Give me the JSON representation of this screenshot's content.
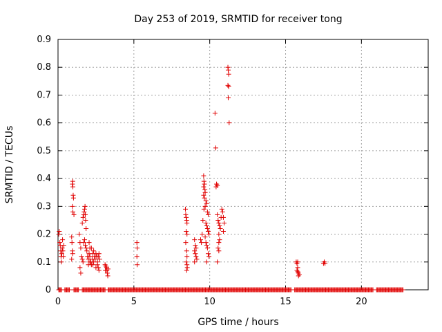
{
  "chart_data": {
    "type": "scatter",
    "title": "Day 253 of 2019, SRMTID for receiver tong",
    "xlabel": "GPS time / hours",
    "ylabel": "SRMTID / TECUs",
    "xlim": [
      0,
      24.4
    ],
    "ylim": [
      0,
      0.9
    ],
    "xticks": [
      0,
      5,
      10,
      15,
      20
    ],
    "xtick_labels": [
      "0",
      "5",
      "10",
      "15",
      "20"
    ],
    "yticks": [
      0,
      0.1,
      0.2,
      0.3,
      0.4,
      0.5,
      0.6,
      0.7,
      0.8,
      0.9
    ],
    "ytick_labels": [
      "0",
      "0.1",
      "0.2",
      "0.3",
      "0.4",
      "0.5",
      "0.6",
      "0.7",
      "0.8",
      "0.9"
    ],
    "grid": true,
    "marker": "plus",
    "color": "#e00000",
    "zero_line_ranges": [
      [
        0.05,
        0.25
      ],
      [
        0.45,
        0.8
      ],
      [
        1.05,
        1.35
      ],
      [
        1.6,
        3.1
      ],
      [
        3.3,
        15.4
      ],
      [
        15.6,
        20.8
      ],
      [
        21.0,
        22.75
      ]
    ],
    "series": [
      {
        "name": "SRMTID",
        "points": [
          [
            0.05,
            0.2
          ],
          [
            0.08,
            0.21
          ],
          [
            0.12,
            0.17
          ],
          [
            0.15,
            0.16
          ],
          [
            0.18,
            0.14
          ],
          [
            0.2,
            0.12
          ],
          [
            0.22,
            0.1
          ],
          [
            0.25,
            0.13
          ],
          [
            0.28,
            0.15
          ],
          [
            0.3,
            0.18
          ],
          [
            0.32,
            0.14
          ],
          [
            0.35,
            0.12
          ],
          [
            0.38,
            0.16
          ],
          [
            0.95,
            0.38
          ],
          [
            0.97,
            0.39
          ],
          [
            0.98,
            0.37
          ],
          [
            1.0,
            0.34
          ],
          [
            1.02,
            0.33
          ],
          [
            0.95,
            0.3
          ],
          [
            0.98,
            0.28
          ],
          [
            1.05,
            0.27
          ],
          [
            0.9,
            0.19
          ],
          [
            0.92,
            0.17
          ],
          [
            0.95,
            0.14
          ],
          [
            0.97,
            0.13
          ],
          [
            0.9,
            0.11
          ],
          [
            1.4,
            0.2
          ],
          [
            1.45,
            0.17
          ],
          [
            1.5,
            0.15
          ],
          [
            1.55,
            0.12
          ],
          [
            1.6,
            0.11
          ],
          [
            1.65,
            0.1
          ],
          [
            1.45,
            0.08
          ],
          [
            1.5,
            0.06
          ],
          [
            1.6,
            0.24
          ],
          [
            1.65,
            0.26
          ],
          [
            1.7,
            0.27
          ],
          [
            1.72,
            0.28
          ],
          [
            1.75,
            0.29
          ],
          [
            1.78,
            0.3
          ],
          [
            1.8,
            0.27
          ],
          [
            1.82,
            0.25
          ],
          [
            1.85,
            0.22
          ],
          [
            1.7,
            0.17
          ],
          [
            1.75,
            0.18
          ],
          [
            1.8,
            0.16
          ],
          [
            1.85,
            0.15
          ],
          [
            1.9,
            0.14
          ],
          [
            1.95,
            0.12
          ],
          [
            2.0,
            0.11
          ],
          [
            2.05,
            0.13
          ],
          [
            2.1,
            0.12
          ],
          [
            2.15,
            0.1
          ],
          [
            2.2,
            0.09
          ],
          [
            2.25,
            0.11
          ],
          [
            2.3,
            0.13
          ],
          [
            2.35,
            0.14
          ],
          [
            2.4,
            0.12
          ],
          [
            2.45,
            0.11
          ],
          [
            2.5,
            0.13
          ],
          [
            2.55,
            0.12
          ],
          [
            2.6,
            0.1
          ],
          [
            2.65,
            0.12
          ],
          [
            2.7,
            0.13
          ],
          [
            2.75,
            0.11
          ],
          [
            2.05,
            0.17
          ],
          [
            2.1,
            0.15
          ],
          [
            2.2,
            0.15
          ],
          [
            2.3,
            0.09
          ],
          [
            2.35,
            0.1
          ],
          [
            2.5,
            0.08
          ],
          [
            2.6,
            0.09
          ],
          [
            2.65,
            0.08
          ],
          [
            2.7,
            0.07
          ],
          [
            2.0,
            0.09
          ],
          [
            2.1,
            0.1
          ],
          [
            3.1,
            0.09
          ],
          [
            3.15,
            0.085
          ],
          [
            3.2,
            0.08
          ],
          [
            3.22,
            0.07
          ],
          [
            3.25,
            0.06
          ],
          [
            3.28,
            0.05
          ],
          [
            3.3,
            0.075
          ],
          [
            3.12,
            0.07
          ],
          [
            5.2,
            0.17
          ],
          [
            5.22,
            0.15
          ],
          [
            5.2,
            0.12
          ],
          [
            5.22,
            0.09
          ],
          [
            8.4,
            0.29
          ],
          [
            8.42,
            0.27
          ],
          [
            8.45,
            0.26
          ],
          [
            8.48,
            0.25
          ],
          [
            8.5,
            0.24
          ],
          [
            8.45,
            0.21
          ],
          [
            8.5,
            0.2
          ],
          [
            8.42,
            0.17
          ],
          [
            8.48,
            0.14
          ],
          [
            8.5,
            0.12
          ],
          [
            8.45,
            0.1
          ],
          [
            8.5,
            0.09
          ],
          [
            8.48,
            0.07
          ],
          [
            8.52,
            0.08
          ],
          [
            9.0,
            0.18
          ],
          [
            9.05,
            0.16
          ],
          [
            9.1,
            0.15
          ],
          [
            9.0,
            0.14
          ],
          [
            9.05,
            0.13
          ],
          [
            9.1,
            0.12
          ],
          [
            9.15,
            0.11
          ],
          [
            9.0,
            0.1
          ],
          [
            9.4,
            0.18
          ],
          [
            9.45,
            0.17
          ],
          [
            9.5,
            0.2
          ],
          [
            9.55,
            0.25
          ],
          [
            9.6,
            0.41
          ],
          [
            9.62,
            0.39
          ],
          [
            9.65,
            0.38
          ],
          [
            9.6,
            0.37
          ],
          [
            9.68,
            0.36
          ],
          [
            9.7,
            0.35
          ],
          [
            9.6,
            0.34
          ],
          [
            9.65,
            0.33
          ],
          [
            9.75,
            0.32
          ],
          [
            9.8,
            0.31
          ],
          [
            9.7,
            0.3
          ],
          [
            9.62,
            0.29
          ],
          [
            9.85,
            0.28
          ],
          [
            9.9,
            0.27
          ],
          [
            9.75,
            0.24
          ],
          [
            9.8,
            0.23
          ],
          [
            9.85,
            0.22
          ],
          [
            9.9,
            0.21
          ],
          [
            9.95,
            0.2
          ],
          [
            9.7,
            0.19
          ],
          [
            9.75,
            0.17
          ],
          [
            9.8,
            0.16
          ],
          [
            9.85,
            0.15
          ],
          [
            9.9,
            0.13
          ],
          [
            9.95,
            0.12
          ],
          [
            9.8,
            0.1
          ],
          [
            10.35,
            0.635
          ],
          [
            10.4,
            0.51
          ],
          [
            10.45,
            0.38
          ],
          [
            10.5,
            0.375
          ],
          [
            10.42,
            0.37
          ],
          [
            10.5,
            0.27
          ],
          [
            10.55,
            0.25
          ],
          [
            10.6,
            0.24
          ],
          [
            10.65,
            0.23
          ],
          [
            10.7,
            0.22
          ],
          [
            10.75,
            0.26
          ],
          [
            10.8,
            0.29
          ],
          [
            10.85,
            0.28
          ],
          [
            10.6,
            0.2
          ],
          [
            10.65,
            0.18
          ],
          [
            10.6,
            0.17
          ],
          [
            10.55,
            0.15
          ],
          [
            10.6,
            0.14
          ],
          [
            10.5,
            0.1
          ],
          [
            10.9,
            0.26
          ],
          [
            10.95,
            0.24
          ],
          [
            10.9,
            0.21
          ],
          [
            11.2,
            0.8
          ],
          [
            11.22,
            0.79
          ],
          [
            11.25,
            0.775
          ],
          [
            11.2,
            0.735
          ],
          [
            11.25,
            0.73
          ],
          [
            11.22,
            0.69
          ],
          [
            11.28,
            0.6
          ],
          [
            15.7,
            0.1
          ],
          [
            15.75,
            0.095
          ],
          [
            15.8,
            0.08
          ],
          [
            15.75,
            0.07
          ],
          [
            15.8,
            0.065
          ],
          [
            15.85,
            0.06
          ],
          [
            15.9,
            0.055
          ],
          [
            15.85,
            0.05
          ],
          [
            15.8,
            0.1
          ],
          [
            17.5,
            0.095
          ],
          [
            17.55,
            0.1
          ],
          [
            17.6,
            0.095
          ]
        ]
      }
    ]
  }
}
